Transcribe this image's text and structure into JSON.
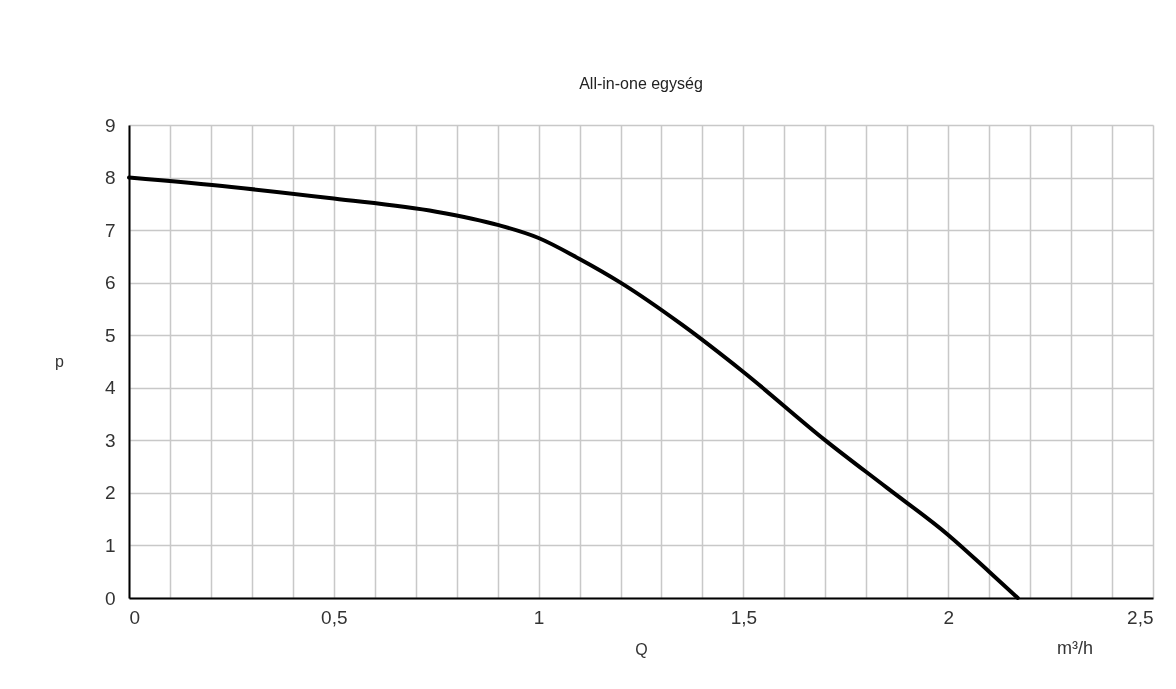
{
  "chart_data": {
    "type": "line",
    "title": "All-in-one egység",
    "xlabel": "Q",
    "ylabel": "p",
    "annotations": [
      "m³/h"
    ],
    "series": [
      {
        "color": "#000000",
        "x": [
          0,
          0.25,
          0.5,
          0.75,
          0.9,
          1.0,
          1.1,
          1.2,
          1.35,
          1.5,
          1.7,
          1.85,
          2.0,
          2.1,
          2.17
        ],
        "values": [
          8.0,
          7.82,
          7.6,
          7.35,
          7.1,
          6.85,
          6.45,
          6.0,
          5.2,
          4.3,
          3.0,
          2.1,
          1.2,
          0.5,
          0
        ]
      }
    ],
    "xlim": [
      0,
      2.5
    ],
    "ylim": [
      0,
      9
    ],
    "xticks": [
      0,
      {
        "value": 0.1,
        "label": null
      },
      {
        "value": 0.2,
        "label": null
      },
      {
        "value": 0.3,
        "label": null
      },
      {
        "value": 0.4,
        "label": null
      },
      {
        "value": 0.5,
        "label": "0,5"
      },
      {
        "value": 0.6,
        "label": null
      },
      {
        "value": 0.7,
        "label": null
      },
      {
        "value": 0.8,
        "label": null
      },
      {
        "value": 0.9,
        "label": null
      },
      1,
      {
        "value": 1.1,
        "label": null
      },
      {
        "value": 1.2,
        "label": null
      },
      {
        "value": 1.3,
        "label": null
      },
      {
        "value": 1.4,
        "label": null
      },
      {
        "value": 1.5,
        "label": "1,5"
      },
      {
        "value": 1.6,
        "label": null
      },
      {
        "value": 1.7,
        "label": null
      },
      {
        "value": 1.8,
        "label": null
      },
      {
        "value": 1.9,
        "label": null
      },
      2,
      {
        "value": 2.1,
        "label": null
      },
      {
        "value": 2.2,
        "label": null
      },
      {
        "value": 2.3,
        "label": null
      },
      {
        "value": 2.4,
        "label": null
      },
      {
        "value": 2.5,
        "label": "2,5"
      }
    ],
    "yticks": [
      0,
      1,
      2,
      3,
      4,
      5,
      6,
      7,
      8,
      9
    ],
    "grid": true,
    "marker": "none",
    "line_style": "solid"
  }
}
